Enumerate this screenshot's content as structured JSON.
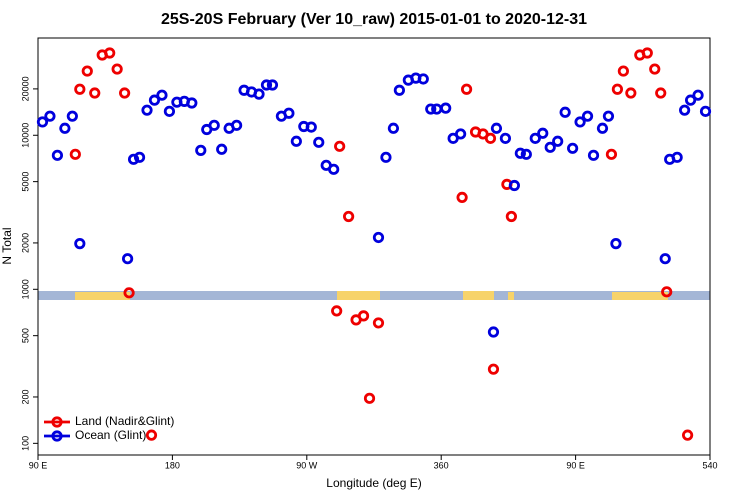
{
  "chart_data": {
    "type": "scatter",
    "title": "25S-20S February (Ver 10_raw)   2015-01-01 to 2020-12-31",
    "x_label": "Longitude (deg E)",
    "y_label": "N Total",
    "xlim": [
      90,
      540
    ],
    "xticks": [
      {
        "value": 90,
        "label": "90 E"
      },
      180,
      {
        "value": 270,
        "label": "90 W"
      },
      360,
      {
        "value": 450,
        "label": "90 E"
      },
      540
    ],
    "ylim": [
      84,
      42800
    ],
    "yscale": "log",
    "yticks": [
      100,
      200,
      500,
      1000,
      2000,
      5000,
      10000,
      20000
    ],
    "legend": "lower left",
    "series": [
      {
        "name": "Land (Nadir&Glint)",
        "color": "#ee0000",
        "x": [
          115,
          118,
          123,
          128,
          133,
          138,
          143,
          148,
          151,
          166,
          290,
          292,
          298,
          303,
          308,
          312,
          318,
          374,
          377,
          383,
          388,
          393,
          395,
          404,
          407,
          474,
          478,
          482,
          487,
          493,
          498,
          503,
          507,
          511,
          525
        ],
        "values": [
          7520,
          19900,
          26100,
          18800,
          33200,
          34200,
          26900,
          18800,
          949,
          113,
          724,
          8480,
          2970,
          633,
          672,
          196,
          605,
          3950,
          19900,
          10500,
          10200,
          9550,
          303,
          4800,
          2970,
          7520,
          19900,
          26100,
          18800,
          33200,
          34200,
          26900,
          18800,
          963,
          113
        ]
      },
      {
        "name": "Ocean (Glint)",
        "color": "#0000dd",
        "x": [
          93,
          98,
          103,
          108,
          113,
          118,
          150,
          154,
          158,
          163,
          168,
          173,
          178,
          183,
          188,
          193,
          199,
          203,
          208,
          213,
          218,
          223,
          228,
          233,
          238,
          243,
          247,
          253,
          258,
          263,
          268,
          273,
          278,
          283,
          288,
          318,
          323,
          328,
          332,
          338,
          343,
          348,
          353,
          357,
          363,
          368,
          373,
          395,
          397,
          403,
          409,
          413,
          417,
          423,
          428,
          433,
          438,
          443,
          448,
          453,
          458,
          462,
          468,
          472,
          477,
          510,
          513,
          518,
          523,
          527,
          532,
          537
        ],
        "values": [
          12200,
          13300,
          7410,
          11100,
          13300,
          1980,
          1580,
          6980,
          7190,
          14550,
          16900,
          18200,
          14300,
          16400,
          16600,
          16200,
          7980,
          10900,
          11600,
          8110,
          11100,
          11600,
          19600,
          19100,
          18500,
          21200,
          21200,
          13300,
          13900,
          9140,
          11400,
          11300,
          9000,
          6380,
          6010,
          2170,
          7190,
          11100,
          19600,
          22800,
          23500,
          23200,
          14800,
          14800,
          15000,
          9550,
          10200,
          528,
          11100,
          9550,
          4720,
          7640,
          7520,
          9550,
          10300,
          8350,
          9140,
          14100,
          8230,
          12200,
          13300,
          7410,
          11100,
          13300,
          1980,
          1580,
          6980,
          7190,
          14550,
          16900,
          18200,
          14300
        ]
      }
    ]
  }
}
